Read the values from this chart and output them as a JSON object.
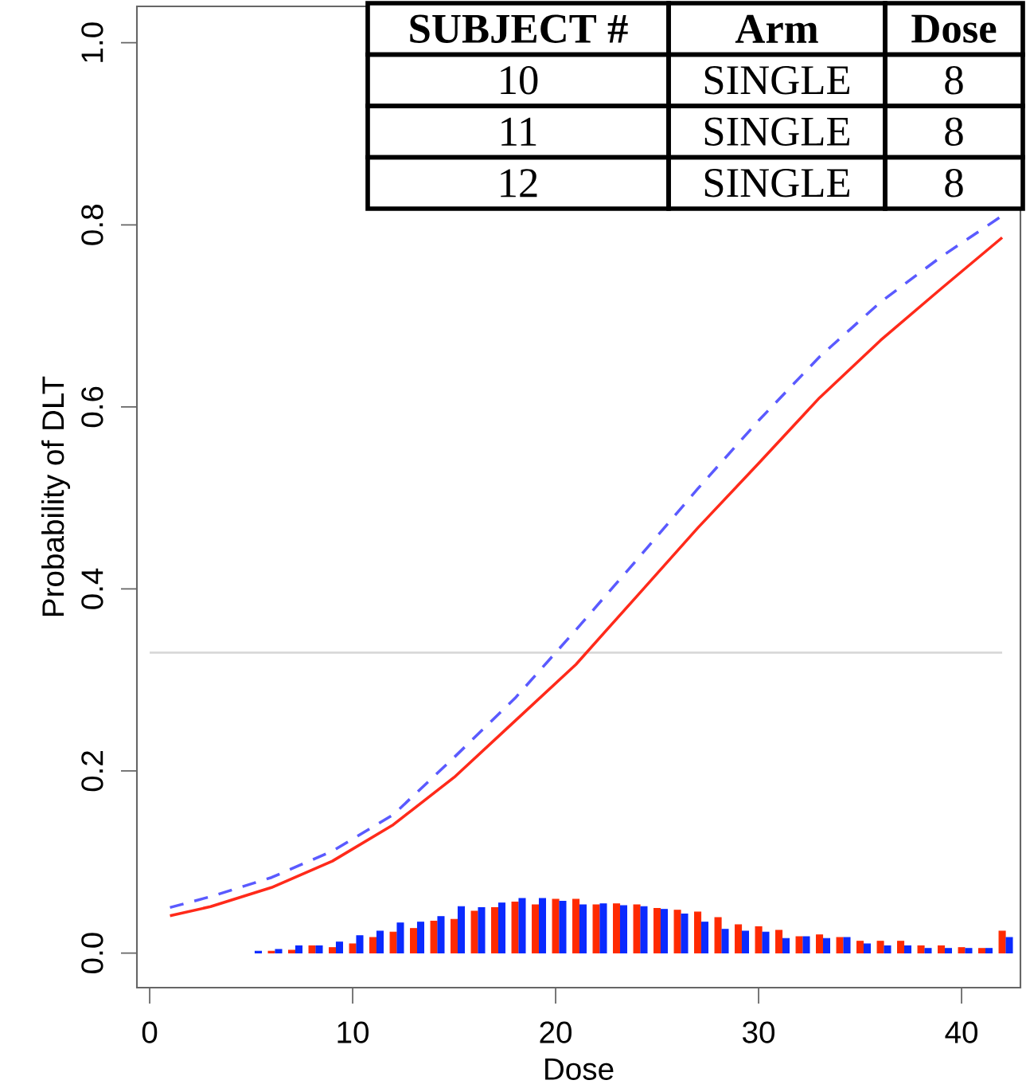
{
  "chart_data": {
    "type": "line",
    "xlabel": "Dose",
    "ylabel": "Probability of DLT",
    "xlim": [
      -0.63,
      42.9
    ],
    "ylim": [
      -0.038,
      1.04
    ],
    "xticks": [
      0,
      10,
      20,
      30,
      40
    ],
    "yticks": [
      {
        "value": 0,
        "label": "0.0"
      },
      0.2,
      0.4,
      0.6,
      0.8,
      {
        "value": 1,
        "label": "1.0"
      }
    ],
    "grid": false,
    "ref_lines": [
      {
        "axis": "y",
        "value": 0.33,
        "color": "#d9d9d9"
      }
    ],
    "annotations": [
      "SUBJECT  #",
      "Arm",
      "Dose",
      "10",
      "SINGLE",
      "8",
      "11",
      "SINGLE",
      "8",
      "12",
      "SINGLE",
      "8"
    ],
    "series": [
      {
        "type": "bar",
        "color": "#ff2a00",
        "x": [
          6,
          7,
          8,
          9,
          10,
          11,
          12,
          13,
          14,
          15,
          16,
          17,
          18,
          19,
          20,
          21,
          22,
          23,
          24,
          25,
          26,
          27,
          28,
          29,
          30,
          31,
          32,
          33,
          34,
          35,
          36,
          37,
          38,
          39,
          40,
          41,
          42
        ],
        "values": [
          0.002,
          0.003,
          0.008,
          0.006,
          0.01,
          0.017,
          0.023,
          0.027,
          0.035,
          0.037,
          0.046,
          0.05,
          0.056,
          0.053,
          0.059,
          0.059,
          0.053,
          0.054,
          0.053,
          0.049,
          0.047,
          0.045,
          0.039,
          0.031,
          0.029,
          0.025,
          0.018,
          0.02,
          0.017,
          0.013,
          0.013,
          0.013,
          0.008,
          0.008,
          0.006,
          0.005,
          0.024
        ]
      },
      {
        "type": "bar",
        "color": "#0a2aff",
        "x": [
          5.35,
          6.35,
          7.35,
          8.35,
          9.35,
          10.35,
          11.35,
          12.35,
          13.35,
          14.35,
          15.35,
          16.35,
          17.35,
          18.35,
          19.35,
          20.35,
          21.35,
          22.35,
          23.35,
          24.35,
          25.35,
          26.35,
          27.35,
          28.35,
          29.35,
          30.35,
          31.35,
          32.35,
          33.35,
          34.35,
          35.35,
          36.35,
          37.35,
          38.35,
          39.35,
          40.35,
          41.35,
          42.35
        ],
        "values": [
          0.002,
          0.004,
          0.008,
          0.008,
          0.012,
          0.019,
          0.024,
          0.033,
          0.034,
          0.04,
          0.051,
          0.05,
          0.055,
          0.06,
          0.06,
          0.057,
          0.053,
          0.054,
          0.052,
          0.051,
          0.048,
          0.043,
          0.034,
          0.026,
          0.024,
          0.023,
          0.016,
          0.018,
          0.016,
          0.017,
          0.01,
          0.008,
          0.008,
          0.005,
          0.005,
          0.005,
          0.005,
          0.017
        ]
      },
      {
        "color": "#5a5aff",
        "line_style": "dashed",
        "x": [
          1,
          3,
          6,
          9,
          12,
          15,
          18,
          21,
          24,
          27,
          30,
          33,
          36,
          39,
          42
        ],
        "values": [
          0.05,
          0.062,
          0.083,
          0.112,
          0.152,
          0.215,
          0.28,
          0.355,
          0.432,
          0.51,
          0.585,
          0.655,
          0.715,
          0.765,
          0.81
        ]
      },
      {
        "color": "#ff2a1a",
        "line_style": "solid",
        "x": [
          1,
          3,
          6,
          9,
          12,
          15,
          18,
          21,
          24,
          27,
          30,
          33,
          36,
          39,
          42
        ],
        "values": [
          0.041,
          0.051,
          0.072,
          0.101,
          0.141,
          0.193,
          0.255,
          0.317,
          0.392,
          0.467,
          0.538,
          0.61,
          0.673,
          0.73,
          0.786
        ]
      }
    ]
  }
}
